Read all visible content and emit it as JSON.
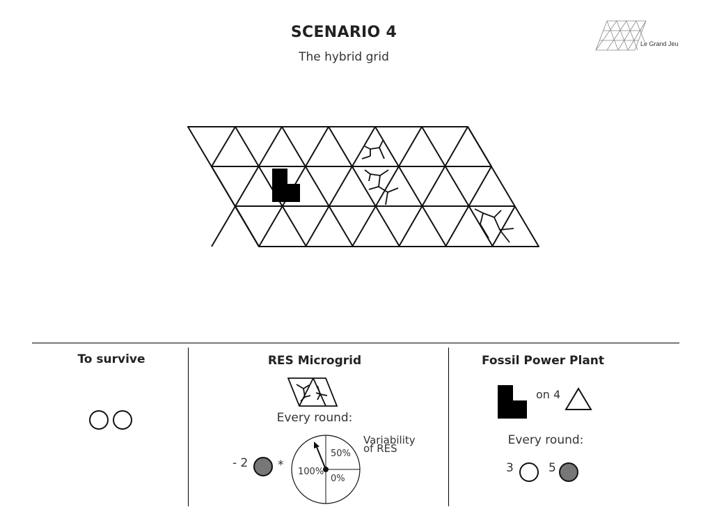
{
  "header": {
    "title": "SCENARIO 4",
    "subtitle": "The hybrid grid",
    "logo_text": "Le Grand Jeu"
  },
  "sections": {
    "survive": {
      "title": "To survive",
      "tokens": [
        "white",
        "white"
      ]
    },
    "res": {
      "title": "RES Microgrid",
      "every_round": "Every round:",
      "cost": "- 2",
      "multiplier": "*",
      "dial": {
        "label_100": "100%",
        "label_50": "50%",
        "label_0": "0%"
      },
      "variability_line1": "Variability",
      "variability_line2": "of RES"
    },
    "fossil": {
      "title": "Fossil Power Plant",
      "on_text": "on 4",
      "every_round": "Every round:",
      "white_count": "3",
      "grey_count": "5"
    }
  },
  "colors": {
    "line": "#111111",
    "token_grey": "#777777",
    "text": "#333333"
  }
}
